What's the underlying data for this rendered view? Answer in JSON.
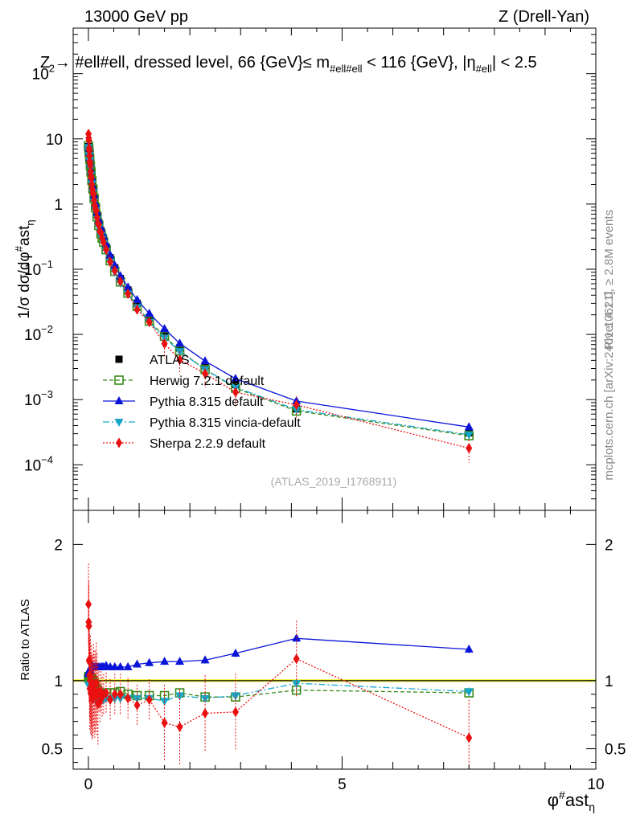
{
  "header": {
    "left": "13000 GeV pp",
    "right": "Z (Drell-Yan)"
  },
  "side_labels": {
    "rivet": "Rivet 4.1.0, ≥ 2.8M events",
    "mcplots": "mcplots.cern.ch [arXiv:2401.10621]"
  },
  "chart_data": [
    {
      "type": "line",
      "panel": "main",
      "title": "Z → #ell#ell, dressed level, 66 {GeV} ≤ m_{#ell#ell} < 116 {GeV}, |η_{#ell}| < 2.5",
      "ylabel": "1/σ dσ/dφ^{#}ast_{η}",
      "yscale": "log",
      "ylim": [
        2e-05,
        500
      ],
      "xlim": [
        -0.3,
        10
      ],
      "yticks": [
        {
          "v": 0.0001,
          "base": "10",
          "exp": "−4"
        },
        {
          "v": 0.001,
          "base": "10",
          "exp": "−3"
        },
        {
          "v": 0.01,
          "base": "10",
          "exp": "−2"
        },
        {
          "v": 0.1,
          "base": "10",
          "exp": "−1"
        },
        {
          "v": 1,
          "base": "1",
          "exp": ""
        },
        {
          "v": 10,
          "base": "10",
          "exp": ""
        },
        {
          "v": 100,
          "base": "10",
          "exp": "2"
        }
      ],
      "x": [
        0.002,
        0.006,
        0.01,
        0.014,
        0.018,
        0.022,
        0.027,
        0.033,
        0.039,
        0.045,
        0.052,
        0.06,
        0.069,
        0.079,
        0.09,
        0.101,
        0.113,
        0.126,
        0.14,
        0.155,
        0.171,
        0.188,
        0.206,
        0.226,
        0.248,
        0.271,
        0.3,
        0.35,
        0.43,
        0.52,
        0.63,
        0.78,
        0.96,
        1.2,
        1.5,
        1.8,
        2.3,
        2.9,
        4.1,
        7.5
      ],
      "series": [
        {
          "name": "ATLAS",
          "values": [
            7.6,
            7.2,
            6.8,
            6.3,
            5.8,
            5.3,
            4.8,
            4.3,
            3.8,
            3.4,
            3.0,
            2.6,
            2.25,
            1.95,
            1.68,
            1.45,
            1.25,
            1.08,
            0.93,
            0.8,
            0.69,
            0.6,
            0.52,
            0.45,
            0.39,
            0.34,
            0.29,
            0.22,
            0.15,
            0.105,
            0.072,
            0.048,
            0.03,
            0.018,
            0.0105,
            0.0062,
            0.0033,
            0.0017,
            0.00072,
            0.00031
          ]
        },
        {
          "name": "Herwig 7.2.1 default",
          "values": [
            7.8,
            7.4,
            7.0,
            6.5,
            6.0,
            5.4,
            4.9,
            4.4,
            3.9,
            3.5,
            3.1,
            2.7,
            2.3,
            2.0,
            1.7,
            1.45,
            1.22,
            1.04,
            0.88,
            0.75,
            0.64,
            0.55,
            0.47,
            0.4,
            0.35,
            0.3,
            0.26,
            0.2,
            0.135,
            0.093,
            0.064,
            0.043,
            0.027,
            0.016,
            0.0094,
            0.0056,
            0.0029,
            0.0015,
            0.00067,
            0.00028
          ]
        },
        {
          "name": "Pythia 8.315 default",
          "values": [
            8.0,
            7.6,
            7.2,
            6.7,
            6.2,
            5.7,
            5.2,
            4.7,
            4.2,
            3.7,
            3.3,
            2.9,
            2.5,
            2.15,
            1.85,
            1.6,
            1.38,
            1.19,
            1.02,
            0.88,
            0.76,
            0.66,
            0.57,
            0.49,
            0.43,
            0.37,
            0.32,
            0.245,
            0.165,
            0.115,
            0.079,
            0.053,
            0.034,
            0.021,
            0.0122,
            0.0073,
            0.0039,
            0.0021,
            0.00095,
            0.00038
          ]
        },
        {
          "name": "Pythia 8.315 vincia-default",
          "values": [
            7.4,
            7.0,
            6.6,
            6.1,
            5.6,
            5.1,
            4.6,
            4.1,
            3.6,
            3.2,
            2.8,
            2.4,
            2.05,
            1.75,
            1.5,
            1.28,
            1.09,
            0.93,
            0.8,
            0.68,
            0.59,
            0.51,
            0.44,
            0.38,
            0.33,
            0.29,
            0.25,
            0.19,
            0.13,
            0.091,
            0.062,
            0.042,
            0.026,
            0.0155,
            0.0089,
            0.0055,
            0.0029,
            0.00155,
            0.0007,
            0.00029
          ]
        },
        {
          "name": "Sherpa 2.2.9 default",
          "values": [
            11.9,
            10.3,
            9.5,
            7.2,
            6.6,
            5.5,
            4.5,
            4.3,
            3.9,
            3.1,
            2.7,
            2.5,
            2.0,
            1.7,
            1.5,
            1.4,
            1.15,
            0.95,
            0.85,
            0.78,
            0.62,
            0.5,
            0.48,
            0.38,
            0.36,
            0.3,
            0.26,
            0.2,
            0.13,
            0.095,
            0.065,
            0.042,
            0.024,
            0.0155,
            0.0072,
            0.0041,
            0.0025,
            0.0013,
            0.00083,
            0.00018
          ]
        }
      ],
      "legend": [
        "ATLAS",
        "Herwig 7.2.1 default",
        "Pythia 8.315 default",
        "Pythia 8.315 vincia-default",
        "Sherpa 2.2.9 default"
      ],
      "legend_position": "bottom-left",
      "watermark": "(ATLAS_2019_I1768911)"
    },
    {
      "type": "line",
      "panel": "ratio",
      "ylabel": "Ratio to ATLAS",
      "xlabel": "φ^{#}ast_{η}",
      "ylim": [
        0.35,
        2.25
      ],
      "xlim": [
        -0.3,
        10
      ],
      "yticks": [
        0.5,
        1,
        2
      ],
      "xticks": [
        0,
        5,
        10
      ],
      "reference": 1.0,
      "x": [
        0.002,
        0.006,
        0.01,
        0.014,
        0.018,
        0.022,
        0.027,
        0.033,
        0.039,
        0.045,
        0.052,
        0.06,
        0.069,
        0.079,
        0.09,
        0.101,
        0.113,
        0.126,
        0.14,
        0.155,
        0.171,
        0.188,
        0.206,
        0.226,
        0.248,
        0.271,
        0.3,
        0.35,
        0.43,
        0.52,
        0.63,
        0.78,
        0.96,
        1.2,
        1.5,
        1.8,
        2.3,
        2.9,
        4.1,
        7.5
      ],
      "series": [
        {
          "name": "Herwig 7.2.1 default",
          "values": [
            1.02,
            1.03,
            1.03,
            1.03,
            1.03,
            1.02,
            1.02,
            1.02,
            1.02,
            1.02,
            1.02,
            1.02,
            1.01,
            1.01,
            1.0,
            0.99,
            0.98,
            0.96,
            0.95,
            0.94,
            0.93,
            0.92,
            0.91,
            0.9,
            0.9,
            0.89,
            0.89,
            0.91,
            0.91,
            0.91,
            0.92,
            0.9,
            0.89,
            0.89,
            0.89,
            0.91,
            0.88,
            0.88,
            0.93,
            0.91
          ]
        },
        {
          "name": "Pythia 8.315 default",
          "values": [
            1.05,
            1.06,
            1.06,
            1.06,
            1.07,
            1.08,
            1.08,
            1.08,
            1.09,
            1.09,
            1.1,
            1.1,
            1.11,
            1.1,
            1.1,
            1.1,
            1.1,
            1.1,
            1.1,
            1.1,
            1.1,
            1.1,
            1.1,
            1.1,
            1.1,
            1.1,
            1.1,
            1.11,
            1.1,
            1.1,
            1.1,
            1.1,
            1.12,
            1.13,
            1.14,
            1.14,
            1.15,
            1.2,
            1.31,
            1.23
          ]
        },
        {
          "name": "Pythia 8.315 vincia-default",
          "values": [
            0.97,
            0.97,
            0.97,
            0.97,
            0.96,
            0.96,
            0.96,
            0.95,
            0.95,
            0.94,
            0.94,
            0.93,
            0.91,
            0.9,
            0.89,
            0.88,
            0.87,
            0.86,
            0.86,
            0.86,
            0.86,
            0.86,
            0.86,
            0.86,
            0.86,
            0.86,
            0.86,
            0.87,
            0.87,
            0.87,
            0.87,
            0.87,
            0.87,
            0.87,
            0.85,
            0.89,
            0.87,
            0.89,
            0.98,
            0.92
          ]
        },
        {
          "name": "Sherpa 2.2.9 default",
          "values": [
            1.56,
            1.43,
            1.4,
            1.15,
            1.14,
            1.04,
            0.94,
            1.0,
            1.03,
            0.91,
            0.9,
            0.96,
            0.88,
            0.87,
            0.89,
            0.97,
            0.92,
            0.88,
            0.92,
            0.98,
            0.9,
            0.83,
            0.92,
            0.84,
            0.92,
            0.88,
            0.9,
            0.91,
            0.86,
            0.9,
            0.9,
            0.87,
            0.82,
            0.86,
            0.69,
            0.66,
            0.76,
            0.77,
            1.16,
            0.58
          ]
        }
      ]
    }
  ]
}
